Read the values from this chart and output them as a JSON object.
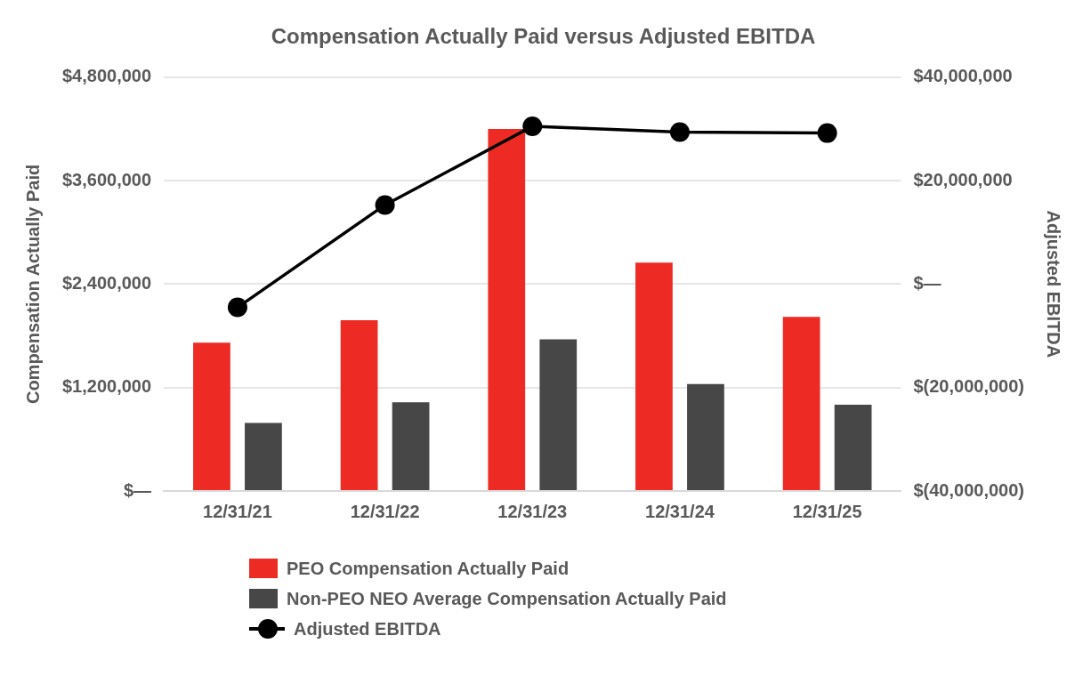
{
  "chart_data": {
    "type": "bar",
    "title": "Compensation Actually Paid versus Adjusted EBITDA",
    "ylabel": "Compensation Actually Paid",
    "y2label": "Adjusted EBITDA",
    "categories": [
      "12/31/21",
      "12/31/22",
      "12/31/23",
      "12/31/24",
      "12/31/25"
    ],
    "series": [
      {
        "name": "PEO Compensation Actually Paid",
        "color": "#ee2a24",
        "values": [
          1720000,
          1980000,
          4200000,
          2650000,
          2020000
        ]
      },
      {
        "name": "Non-PEO NEO Average Compensation Actually Paid",
        "color": "#474747",
        "values": [
          790000,
          1030000,
          1760000,
          1240000,
          1000000
        ]
      },
      {
        "name": "Adjusted EBITDA",
        "type": "line",
        "axis": "y2",
        "color": "#000000",
        "marker": "circle",
        "values": [
          -4500000,
          15300000,
          30500000,
          29400000,
          29200000
        ]
      }
    ],
    "ylim": [
      0,
      4800000
    ],
    "yticks": [
      {
        "value": 0,
        "label": "$—"
      },
      {
        "value": 1200000,
        "label": "$1,200,000"
      },
      {
        "value": 2400000,
        "label": "$2,400,000"
      },
      {
        "value": 3600000,
        "label": "$3,600,000"
      },
      {
        "value": 4800000,
        "label": "$4,800,000"
      }
    ],
    "y2lim": [
      -40000000,
      40000000
    ],
    "y2ticks": [
      {
        "value": -40000000,
        "label": "$(40,000,000)"
      },
      {
        "value": -20000000,
        "label": "$(20,000,000)"
      },
      {
        "value": 0,
        "label": "$—"
      },
      {
        "value": 20000000,
        "label": "$20,000,000"
      },
      {
        "value": 40000000,
        "label": "$40,000,000"
      }
    ],
    "grid": "y",
    "legend": "bottom left"
  }
}
